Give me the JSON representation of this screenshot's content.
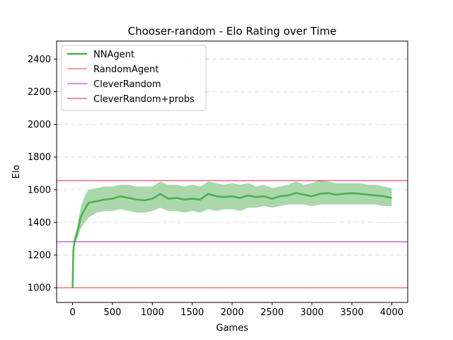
{
  "chart_data": {
    "type": "line",
    "title": "Chooser-random - Elo Rating over Time",
    "xlabel": "Games",
    "ylabel": "Elo",
    "xlim": [
      -200,
      4200
    ],
    "ylim": [
      910,
      2510
    ],
    "xticks": [
      0,
      500,
      1000,
      1500,
      2000,
      2500,
      3000,
      3500,
      4000
    ],
    "yticks": [
      1000,
      1200,
      1400,
      1600,
      1800,
      2000,
      2200,
      2400
    ],
    "grid": "y-dashed",
    "legend_position": "top-left",
    "series": [
      {
        "name": "NNAgent",
        "style": "line-with-band",
        "color": "#4caf50",
        "band_color": "#a5d6a7",
        "x": [
          0,
          10,
          25,
          50,
          75,
          100,
          150,
          200,
          300,
          400,
          500,
          600,
          700,
          800,
          900,
          1000,
          1100,
          1200,
          1300,
          1400,
          1500,
          1600,
          1700,
          1800,
          1900,
          2000,
          2100,
          2200,
          2300,
          2400,
          2500,
          2600,
          2700,
          2800,
          2900,
          3000,
          3100,
          3200,
          3300,
          3400,
          3500,
          3600,
          3700,
          3800,
          3900,
          4000
        ],
        "y": [
          1000,
          1230,
          1290,
          1320,
          1370,
          1430,
          1480,
          1520,
          1530,
          1540,
          1545,
          1560,
          1550,
          1540,
          1535,
          1545,
          1575,
          1545,
          1550,
          1540,
          1545,
          1540,
          1575,
          1560,
          1555,
          1560,
          1550,
          1565,
          1555,
          1560,
          1545,
          1560,
          1565,
          1580,
          1570,
          1560,
          1575,
          1580,
          1570,
          1575,
          1580,
          1575,
          1570,
          1565,
          1560,
          1550
        ],
        "lower": [
          1000,
          1200,
          1260,
          1290,
          1320,
          1360,
          1400,
          1430,
          1460,
          1470,
          1470,
          1480,
          1470,
          1460,
          1460,
          1470,
          1490,
          1470,
          1470,
          1460,
          1470,
          1460,
          1480,
          1470,
          1480,
          1480,
          1470,
          1490,
          1490,
          1500,
          1490,
          1500,
          1510,
          1510,
          1510,
          1500,
          1510,
          1510,
          1510,
          1510,
          1510,
          1510,
          1510,
          1510,
          1500,
          1500
        ],
        "upper": [
          1000,
          1260,
          1320,
          1360,
          1420,
          1490,
          1560,
          1600,
          1610,
          1620,
          1620,
          1630,
          1630,
          1620,
          1620,
          1620,
          1650,
          1630,
          1630,
          1620,
          1630,
          1620,
          1650,
          1640,
          1630,
          1640,
          1630,
          1640,
          1620,
          1630,
          1610,
          1620,
          1630,
          1650,
          1630,
          1640,
          1660,
          1650,
          1640,
          1640,
          1640,
          1640,
          1630,
          1630,
          1620,
          1610
        ]
      },
      {
        "name": "RandomAgent",
        "style": "hline",
        "color": "#e53935",
        "value": 1000
      },
      {
        "name": "CleverRandom",
        "style": "hline",
        "color": "#9c27b0",
        "value": 1282
      },
      {
        "name": "CleverRandom+probs",
        "style": "hline",
        "color": "#d81b60",
        "value": 1656
      }
    ]
  }
}
